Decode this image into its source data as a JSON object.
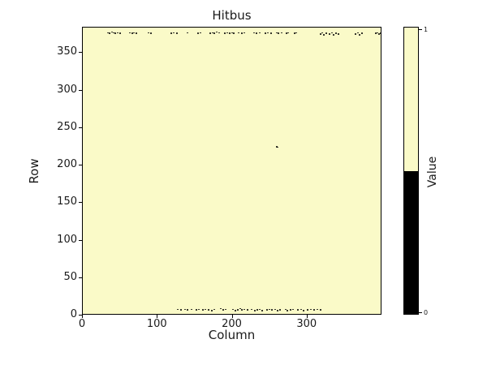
{
  "chart_data": {
    "type": "heatmap",
    "title": "Hitbus",
    "xlabel": "Column",
    "ylabel": "Row",
    "xlim": [
      0,
      400
    ],
    "ylim": [
      0,
      384
    ],
    "x_ticks": [
      0,
      100,
      200,
      300
    ],
    "y_ticks": [
      0,
      50,
      100,
      150,
      200,
      250,
      300,
      350
    ],
    "grid": false,
    "background_value": 1,
    "value_colors": {
      "0": "#000000",
      "1": "#fafac8"
    },
    "colorbar": {
      "label": "Value",
      "position": "right",
      "ticks": [
        0,
        1
      ],
      "tick_labels": [
        "0",
        "1"
      ],
      "threshold": 0.5,
      "colors_low_to_high": [
        "#000000",
        "#fafac8"
      ]
    },
    "zero_points": [
      [
        33,
        378
      ],
      [
        35,
        377
      ],
      [
        38,
        379
      ],
      [
        40,
        378
      ],
      [
        43,
        377
      ],
      [
        46,
        378
      ],
      [
        49,
        377
      ],
      [
        62,
        378
      ],
      [
        65,
        377
      ],
      [
        68,
        378
      ],
      [
        71,
        377
      ],
      [
        87,
        378
      ],
      [
        90,
        377
      ],
      [
        118,
        377
      ],
      [
        121,
        378
      ],
      [
        125,
        377
      ],
      [
        140,
        378
      ],
      [
        154,
        377
      ],
      [
        157,
        378
      ],
      [
        170,
        377
      ],
      [
        173,
        378
      ],
      [
        176,
        377
      ],
      [
        179,
        379
      ],
      [
        182,
        378
      ],
      [
        190,
        377
      ],
      [
        193,
        378
      ],
      [
        196,
        377
      ],
      [
        199,
        378
      ],
      [
        202,
        377
      ],
      [
        208,
        378
      ],
      [
        212,
        377
      ],
      [
        216,
        378
      ],
      [
        229,
        378
      ],
      [
        232,
        377
      ],
      [
        236,
        378
      ],
      [
        244,
        377
      ],
      [
        247,
        378
      ],
      [
        252,
        377
      ],
      [
        259,
        378
      ],
      [
        262,
        377
      ],
      [
        266,
        378
      ],
      [
        272,
        377
      ],
      [
        275,
        378
      ],
      [
        283,
        377
      ],
      [
        286,
        378
      ],
      [
        318,
        376
      ],
      [
        320,
        378
      ],
      [
        323,
        375
      ],
      [
        326,
        377
      ],
      [
        330,
        376
      ],
      [
        333,
        378
      ],
      [
        336,
        375
      ],
      [
        339,
        377
      ],
      [
        342,
        376
      ],
      [
        365,
        376
      ],
      [
        368,
        378
      ],
      [
        371,
        375
      ],
      [
        374,
        377
      ],
      [
        392,
        377
      ],
      [
        395,
        378
      ],
      [
        397,
        376
      ],
      [
        399,
        377
      ],
      [
        259,
        225
      ],
      [
        261,
        224
      ],
      [
        126,
        7
      ],
      [
        131,
        6
      ],
      [
        136,
        7
      ],
      [
        140,
        6
      ],
      [
        145,
        7
      ],
      [
        151,
        6
      ],
      [
        155,
        7
      ],
      [
        160,
        6
      ],
      [
        164,
        7
      ],
      [
        168,
        6
      ],
      [
        172,
        5
      ],
      [
        176,
        7
      ],
      [
        184,
        8
      ],
      [
        187,
        6
      ],
      [
        191,
        7
      ],
      [
        200,
        7
      ],
      [
        204,
        5
      ],
      [
        207,
        6
      ],
      [
        210,
        8
      ],
      [
        213,
        6
      ],
      [
        216,
        7
      ],
      [
        220,
        6
      ],
      [
        226,
        7
      ],
      [
        230,
        5
      ],
      [
        233,
        6
      ],
      [
        236,
        7
      ],
      [
        240,
        5
      ],
      [
        246,
        6
      ],
      [
        250,
        7
      ],
      [
        253,
        6
      ],
      [
        257,
        7
      ],
      [
        260,
        5
      ],
      [
        264,
        6
      ],
      [
        271,
        7
      ],
      [
        274,
        5
      ],
      [
        278,
        6
      ],
      [
        281,
        7
      ],
      [
        288,
        6
      ],
      [
        292,
        7
      ],
      [
        295,
        5
      ],
      [
        301,
        6
      ],
      [
        305,
        7
      ],
      [
        310,
        6
      ],
      [
        314,
        7
      ],
      [
        318,
        6
      ]
    ]
  }
}
